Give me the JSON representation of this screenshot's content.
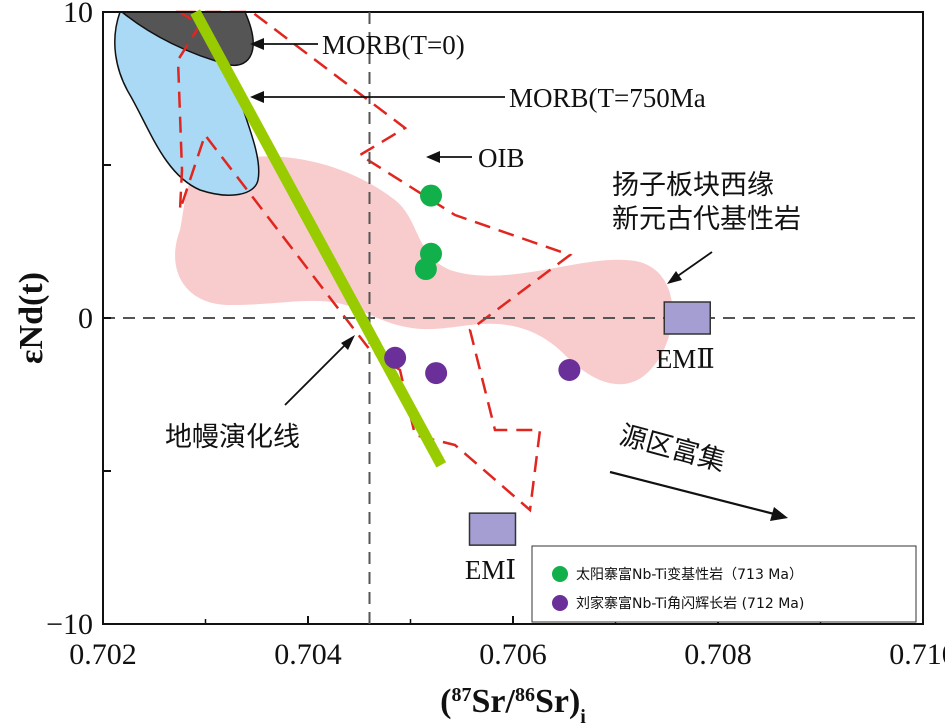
{
  "chart_data": {
    "type": "scatter",
    "xlim": [
      0.702,
      0.71
    ],
    "ylim": [
      -10,
      10
    ],
    "xticks": [
      "0.702",
      "0.704",
      "0.706",
      "0.708",
      "0.710"
    ],
    "yticks": [
      "10",
      "0",
      "−10"
    ],
    "xlabel": "(87Sr/86Sr)i",
    "ylabel": "εNd(t)",
    "reference_lines": {
      "x": 0.7046,
      "y": 0
    },
    "series": [
      {
        "name": "太阳寨富Nb-Ti变基性岩（713 Ma）",
        "color": "#12b04a",
        "points": [
          [
            0.7052,
            4.0
          ],
          [
            0.7052,
            2.1
          ],
          [
            0.70515,
            1.6
          ]
        ]
      },
      {
        "name": "刘家寨富Nb-Ti角闪辉长岩 (712 Ma)",
        "color": "#6b2f9a",
        "points": [
          [
            0.70485,
            -1.3
          ],
          [
            0.70525,
            -1.8
          ],
          [
            0.70655,
            -1.7
          ]
        ]
      }
    ],
    "end_members": [
      {
        "label": "EMⅡ",
        "x": 0.7077,
        "y": 0.0,
        "color": "#a59ed3"
      },
      {
        "label": "EMⅠ",
        "x": 0.7058,
        "y": -6.9,
        "color": "#a59ed3"
      }
    ],
    "fields": [
      {
        "label": "MORB(T=0)",
        "color": "#555555"
      },
      {
        "label": "MORB(T=750Ma",
        "color": "#a9d9f5"
      },
      {
        "label": "OIB",
        "color": "#e0261f"
      },
      {
        "label": "扬子板块西缘",
        "label2": "新元古代基性岩",
        "color": "#f8cccc"
      }
    ],
    "mantle_line": {
      "label": "地幔演化线",
      "color": "#99cc00",
      "from": [
        0.7029,
        10
      ],
      "to": [
        0.7053,
        -4.8
      ]
    },
    "arrow_label": "源区富集"
  }
}
